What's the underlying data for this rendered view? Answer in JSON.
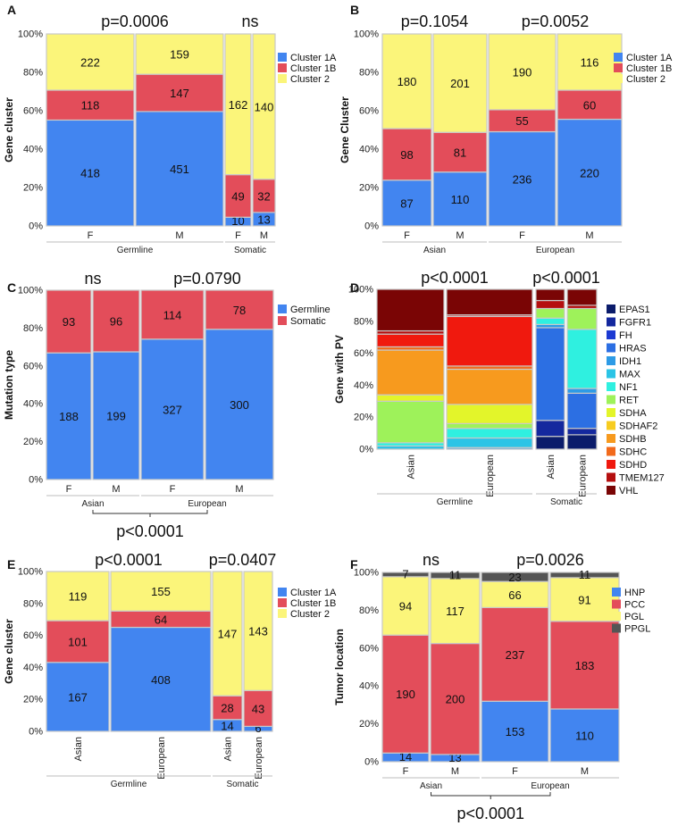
{
  "colors": {
    "cluster_1a": "#4285f0",
    "cluster_1b": "#e34d5a",
    "cluster_2": "#fbf57a",
    "germline": "#4285f0",
    "somatic": "#e34d5a",
    "hnp": "#4285f0",
    "pcc": "#e34d5a",
    "pgl": "#fbf57a",
    "ppgl": "#555555",
    "EPAS1": "#0b1c6b",
    "FGFR1": "#14289e",
    "FH": "#1c3ad2",
    "HRAS": "#2c6fe3",
    "IDH1": "#2d9be6",
    "MAX": "#2bc4e6",
    "NF1": "#2ff0e0",
    "RET": "#9ef25a",
    "SDHA": "#e3f52a",
    "SDHAF2": "#f7cc20",
    "SDHB": "#f79a1e",
    "SDHC": "#f26a1c",
    "SDHD": "#f0190e",
    "TMEM127": "#b50f0f",
    "VHL": "#7a0505"
  },
  "chart_data": [
    {
      "panel": "A",
      "type": "bar",
      "variant": "mosaic",
      "ylabel": "Gene cluster",
      "yticks": [
        "0%",
        "20%",
        "40%",
        "60%",
        "80%",
        "100%"
      ],
      "legend": [
        "Cluster 1A",
        "Cluster 1B",
        "Cluster 2"
      ],
      "series_colors": [
        "cluster_1a",
        "cluster_1b",
        "cluster_2"
      ],
      "groups": [
        {
          "label": "Germline",
          "pvalue": "p=0.0006",
          "bars": [
            {
              "label": "F",
              "values": [
                418,
                118,
                222
              ]
            },
            {
              "label": "M",
              "values": [
                451,
                147,
                159
              ]
            }
          ]
        },
        {
          "label": "Somatic",
          "pvalue": "ns",
          "bars": [
            {
              "label": "F",
              "values": [
                10,
                49,
                162
              ]
            },
            {
              "label": "M",
              "values": [
                13,
                32,
                140
              ]
            }
          ]
        }
      ]
    },
    {
      "panel": "B",
      "type": "bar",
      "variant": "mosaic",
      "ylabel": "Gene Cluster",
      "yticks": [
        "0%",
        "20%",
        "40%",
        "60%",
        "80%",
        "100%"
      ],
      "legend": [
        "Cluster 1A",
        "Cluster 1B",
        "Cluster 2"
      ],
      "series_colors": [
        "cluster_1a",
        "cluster_1b",
        "cluster_2"
      ],
      "groups": [
        {
          "label": "Asian",
          "pvalue": "p=0.1054",
          "bars": [
            {
              "label": "F",
              "values": [
                87,
                98,
                180
              ]
            },
            {
              "label": "M",
              "values": [
                110,
                81,
                201
              ]
            }
          ]
        },
        {
          "label": "European",
          "pvalue": "p=0.0052",
          "bars": [
            {
              "label": "F",
              "values": [
                236,
                55,
                190
              ]
            },
            {
              "label": "M",
              "values": [
                220,
                60,
                116
              ]
            }
          ]
        }
      ]
    },
    {
      "panel": "C",
      "type": "bar",
      "variant": "mosaic",
      "ylabel": "Mutation type",
      "yticks": [
        "0%",
        "20%",
        "40%",
        "60%",
        "80%",
        "100%"
      ],
      "legend": [
        "Germline",
        "Somatic"
      ],
      "series_colors": [
        "germline",
        "somatic"
      ],
      "bottom_pvalue": "p<0.0001",
      "groups": [
        {
          "label": "Asian",
          "pvalue": "ns",
          "bars": [
            {
              "label": "F",
              "values": [
                188,
                93
              ]
            },
            {
              "label": "M",
              "values": [
                199,
                96
              ]
            }
          ]
        },
        {
          "label": "European",
          "pvalue": "p=0.0790",
          "bars": [
            {
              "label": "F",
              "values": [
                327,
                114
              ]
            },
            {
              "label": "M",
              "values": [
                300,
                78
              ]
            }
          ]
        }
      ]
    },
    {
      "panel": "D",
      "type": "bar",
      "variant": "mosaic",
      "ylabel": "Gene with PV",
      "yticks": [
        "0%",
        "20%",
        "40%",
        "60%",
        "80%",
        "100%"
      ],
      "legend": [
        "EPAS1",
        "FGFR1",
        "FH",
        "HRAS",
        "IDH1",
        "MAX",
        "NF1",
        "RET",
        "SDHA",
        "SDHAF2",
        "SDHB",
        "SDHC",
        "SDHD",
        "TMEM127",
        "VHL"
      ],
      "series_colors": [
        "EPAS1",
        "FGFR1",
        "FH",
        "HRAS",
        "IDH1",
        "MAX",
        "NF1",
        "RET",
        "SDHA",
        "SDHAF2",
        "SDHB",
        "SDHC",
        "SDHD",
        "TMEM127",
        "VHL"
      ],
      "note": "estimated segment percentages (no data labels shown)",
      "groups": [
        {
          "label": "Germline",
          "pvalue": "p<0.0001",
          "bars": [
            {
              "label": "Asian",
              "values": [
                0,
                0,
                0,
                0,
                0,
                2,
                2,
                26,
                4,
                0,
                28,
                2,
                8,
                2,
                26
              ]
            },
            {
              "label": "European",
              "values": [
                0,
                0,
                0,
                0,
                1,
                6,
                6,
                3,
                12,
                0,
                22,
                2,
                31,
                1,
                16
              ]
            }
          ]
        },
        {
          "label": "Somatic",
          "pvalue": "p<0.0001",
          "bars": [
            {
              "label": "Asian",
              "values": [
                8,
                10,
                0,
                58,
                2,
                0,
                4,
                6,
                0,
                0,
                0,
                0,
                0,
                5,
                7
              ]
            },
            {
              "label": "European",
              "values": [
                9,
                4,
                0,
                22,
                3,
                0,
                37,
                13,
                0,
                0,
                0,
                0,
                0,
                2,
                10
              ]
            }
          ]
        }
      ]
    },
    {
      "panel": "E",
      "type": "bar",
      "variant": "mosaic",
      "ylabel": "Gene cluster",
      "yticks": [
        "0%",
        "20%",
        "40%",
        "60%",
        "80%",
        "100%"
      ],
      "legend": [
        "Cluster 1A",
        "Cluster 1B",
        "Cluster 2"
      ],
      "series_colors": [
        "cluster_1a",
        "cluster_1b",
        "cluster_2"
      ],
      "groups": [
        {
          "label": "Germline",
          "pvalue": "p<0.0001",
          "bars": [
            {
              "label": "Asian",
              "values": [
                167,
                101,
                119
              ]
            },
            {
              "label": "European",
              "values": [
                408,
                64,
                155
              ]
            }
          ]
        },
        {
          "label": "Somatic",
          "pvalue": "p=0.0407",
          "bars": [
            {
              "label": "Asian",
              "values": [
                14,
                28,
                147
              ]
            },
            {
              "label": "European",
              "values": [
                6,
                43,
                143
              ]
            }
          ]
        }
      ]
    },
    {
      "panel": "F",
      "type": "bar",
      "variant": "mosaic",
      "ylabel": "Tumor location",
      "yticks": [
        "0%",
        "20%",
        "40%",
        "60%",
        "80%",
        "100%"
      ],
      "legend": [
        "HNP",
        "PCC",
        "PGL",
        "PPGL"
      ],
      "series_colors": [
        "hnp",
        "pcc",
        "pgl",
        "ppgl"
      ],
      "bottom_pvalue": "p<0.0001",
      "groups": [
        {
          "label": "Asian",
          "pvalue": "ns",
          "bars": [
            {
              "label": "F",
              "values": [
                14,
                190,
                94,
                7
              ]
            },
            {
              "label": "M",
              "values": [
                13,
                200,
                117,
                11
              ]
            }
          ]
        },
        {
          "label": "European",
          "pvalue": "p=0.0026",
          "bars": [
            {
              "label": "F",
              "values": [
                153,
                237,
                66,
                23
              ]
            },
            {
              "label": "M",
              "values": [
                110,
                183,
                91,
                11
              ]
            }
          ]
        }
      ]
    }
  ]
}
